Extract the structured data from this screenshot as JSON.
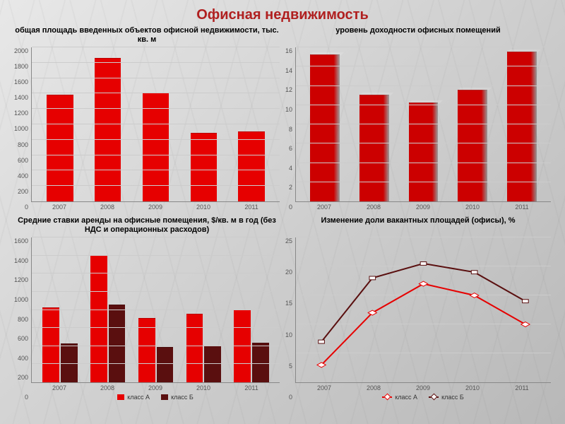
{
  "title": "Офисная недвижимость",
  "title_color": "#b02020",
  "title_fontsize": 20,
  "background_gradient": [
    "#e8e8e8",
    "#d0d0d0",
    "#b8b8b8"
  ],
  "chart1": {
    "type": "bar",
    "title": "общая площадь введенных объектов офисной недвижимости, тыс. кв. м",
    "title_fontsize": 11,
    "categories": [
      "2007",
      "2008",
      "2009",
      "2010",
      "2011"
    ],
    "values": [
      1380,
      1850,
      1400,
      880,
      900
    ],
    "bar_color": "#e60000",
    "ylim": [
      0,
      2000
    ],
    "ytick_step": 200,
    "yticks": [
      0,
      200,
      400,
      600,
      800,
      1000,
      1200,
      1400,
      1600,
      1800,
      2000
    ],
    "grid_color": "#cccccc",
    "axis_color": "#888888",
    "bar_width": 0.55,
    "label_fontsize": 9
  },
  "chart2": {
    "type": "bar",
    "style_3d": true,
    "title": "уровень доходности офисных помещений",
    "title_fontsize": 11,
    "categories": [
      "2007",
      "2008",
      "2009",
      "2010",
      "2011"
    ],
    "values": [
      15.2,
      11.0,
      10.2,
      11.5,
      15.5
    ],
    "bar_color": "#cc0000",
    "ylim": [
      0,
      16
    ],
    "ytick_step": 2,
    "yticks": [
      0,
      2,
      4,
      6,
      8,
      10,
      12,
      14,
      16
    ],
    "grid_color": "#cccccc",
    "axis_color": "#888888",
    "bar_width": 0.6,
    "label_fontsize": 9
  },
  "chart3": {
    "type": "bar",
    "grouped": true,
    "title": "Средние ставки аренды на офисные помещения, $/кв. м в год (без НДС и операционных расходов)",
    "title_fontsize": 11,
    "categories": [
      "2007",
      "2008",
      "2009",
      "2010",
      "2011"
    ],
    "series": [
      {
        "name": "класс А",
        "color": "#e60000",
        "values": [
          820,
          1400,
          700,
          750,
          800
        ]
      },
      {
        "name": "класс Б",
        "color": "#5a0f0f",
        "values": [
          420,
          850,
          380,
          400,
          430
        ]
      }
    ],
    "ylim": [
      0,
      1600
    ],
    "ytick_step": 200,
    "yticks": [
      0,
      200,
      400,
      600,
      800,
      1000,
      1200,
      1400,
      1600
    ],
    "grid_color": "#cccccc",
    "axis_color": "#888888",
    "bar_width": 0.35,
    "label_fontsize": 9,
    "legend_position": "bottom"
  },
  "chart4": {
    "type": "line",
    "title": "Изменение доли вакантных площадей (офисы), %",
    "title_fontsize": 11,
    "categories": [
      "2007",
      "2008",
      "2009",
      "2010",
      "2011"
    ],
    "series": [
      {
        "name": "класс А",
        "color": "#e60000",
        "marker": "diamond",
        "line_width": 2,
        "values": [
          3,
          12,
          17,
          15,
          10
        ]
      },
      {
        "name": "класс Б",
        "color": "#5a0f0f",
        "marker": "square",
        "line_width": 2,
        "values": [
          7,
          18,
          20.5,
          19,
          14
        ]
      }
    ],
    "ylim": [
      0,
      25
    ],
    "ytick_step": 5,
    "yticks": [
      0,
      5,
      10,
      15,
      20,
      25
    ],
    "grid_color": "#cccccc",
    "axis_color": "#888888",
    "label_fontsize": 9,
    "legend_position": "bottom"
  }
}
